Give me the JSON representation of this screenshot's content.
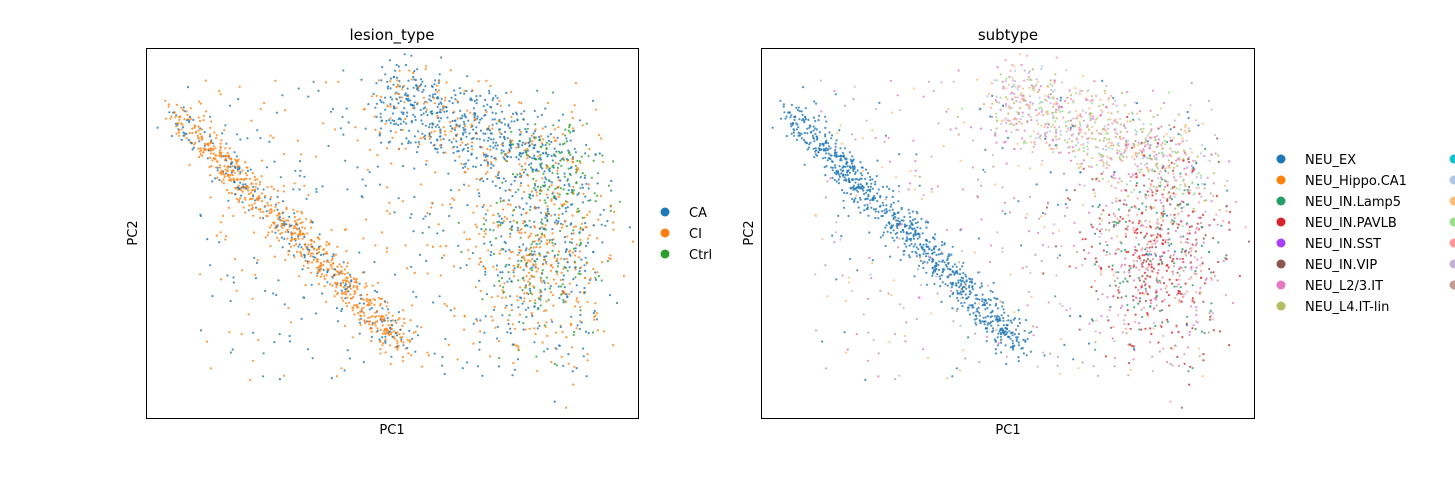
{
  "chart_data": [
    {
      "type": "scatter",
      "title": "lesion_type",
      "xlabel": "PC1",
      "ylabel": "PC2",
      "legend_position": "right",
      "grid": false,
      "series": [
        {
          "name": "CA",
          "color": "#1f77b4"
        },
        {
          "name": "CI",
          "color": "#ff7f0e"
        },
        {
          "name": "Ctrl",
          "color": "#2ca02c"
        }
      ]
    },
    {
      "type": "scatter",
      "title": "subtype",
      "xlabel": "PC1",
      "ylabel": "PC2",
      "legend_position": "right",
      "grid": false,
      "series": [
        {
          "name": "NEU_EX",
          "color": "#1f77b4"
        },
        {
          "name": "NEU_Hippo.CA1",
          "color": "#ff7f0e"
        },
        {
          "name": "NEU_IN.Lamp5",
          "color": "#279e68"
        },
        {
          "name": "NEU_IN.PAVLB",
          "color": "#d62728"
        },
        {
          "name": "NEU_IN.SST",
          "color": "#aa40fc"
        },
        {
          "name": "NEU_IN.VIP",
          "color": "#8c564b"
        },
        {
          "name": "NEU_L2/3.IT",
          "color": "#e377c2"
        },
        {
          "name": "NEU_L4.IT-lin",
          "color": "#b5bd61"
        }
      ],
      "extra_legend_colors": [
        "#17becf",
        "#aec7e8",
        "#ffbb78",
        "#98df8a",
        "#ff9896",
        "#c5b0d5",
        "#c49c94"
      ]
    }
  ]
}
